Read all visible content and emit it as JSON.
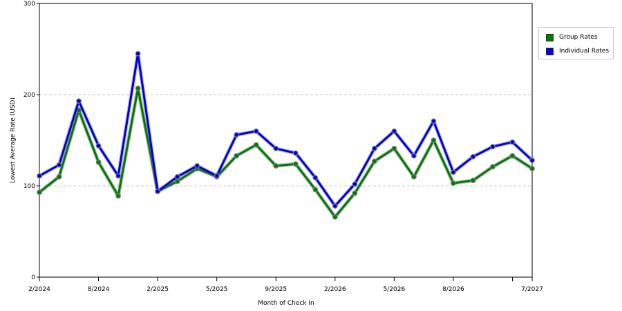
{
  "chart_data": {
    "type": "line",
    "title": "",
    "xlabel": "Month of Check In",
    "ylabel": "Lowest Average Rate (USD)",
    "ylim": [
      0,
      300
    ],
    "yticks": [
      "0",
      "100",
      "200",
      "300"
    ],
    "xtick_labels": [
      {
        "index": 0,
        "label": "2/2024"
      },
      {
        "index": 3,
        "label": "8/2024"
      },
      {
        "index": 6,
        "label": "2/2025"
      },
      {
        "index": 9,
        "label": "5/2025"
      },
      {
        "index": 12,
        "label": "9/2025"
      },
      {
        "index": 15,
        "label": "2/2026"
      },
      {
        "index": 18,
        "label": "5/2026"
      },
      {
        "index": 21,
        "label": "8/2026"
      },
      {
        "index": 24,
        "label": ""
      },
      {
        "index": 25,
        "label": "7/2027"
      }
    ],
    "grid": true,
    "legend_position": "right",
    "series": [
      {
        "name": "Group Rates",
        "color": "#007a00",
        "values": [
          93,
          110,
          183,
          126,
          89,
          207,
          94,
          105,
          119,
          110,
          133,
          145,
          122,
          124,
          96,
          66,
          92,
          127,
          141,
          110,
          150,
          103,
          106,
          121,
          133,
          119
        ]
      },
      {
        "name": "Individual Rates",
        "color": "#0000e0",
        "values": [
          111,
          123,
          193,
          144,
          111,
          245,
          94,
          110,
          122,
          111,
          156,
          160,
          141,
          136,
          109,
          78,
          102,
          141,
          160,
          133,
          171,
          115,
          132,
          143,
          148,
          128
        ]
      }
    ]
  }
}
